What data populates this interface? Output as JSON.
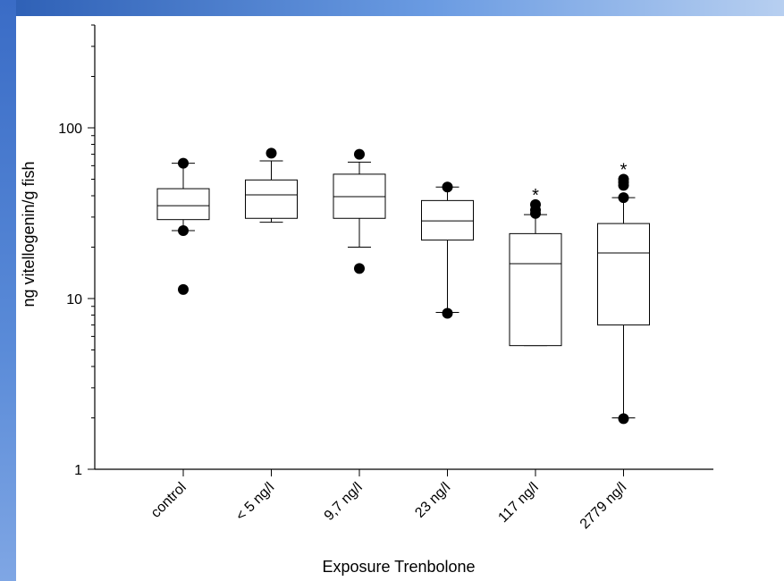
{
  "chart_data": {
    "type": "box",
    "title": "",
    "xlabel": "Exposure Trenbolone",
    "ylabel": "ng vitellogenin/g fish",
    "yscale": "log",
    "ylim": [
      1,
      400
    ],
    "yticks": [
      1,
      10,
      100
    ],
    "ytick_labels": [
      "1",
      "10",
      "100"
    ],
    "grid": false,
    "categories": [
      "control",
      "< 5 ng/l",
      "9,7 ng/l",
      "23 ng/l",
      "117 ng/l",
      "2779 ng/l"
    ],
    "boxes": [
      {
        "whisker_low": 25,
        "q1": 29,
        "median": 35,
        "q3": 44,
        "whisker_high": 62,
        "outliers": [
          62,
          25,
          11.3
        ],
        "significant": false
      },
      {
        "whisker_low": 28,
        "q1": 29.5,
        "median": 40.5,
        "q3": 49.5,
        "whisker_high": 64,
        "outliers": [
          71
        ],
        "significant": false
      },
      {
        "whisker_low": 20,
        "q1": 29.5,
        "median": 39.5,
        "q3": 53.5,
        "whisker_high": 63,
        "outliers": [
          70,
          15
        ],
        "significant": false
      },
      {
        "whisker_low": 8.3,
        "q1": 22,
        "median": 28.5,
        "q3": 37.5,
        "whisker_high": 45,
        "outliers": [
          45,
          8.2
        ],
        "significant": false
      },
      {
        "whisker_low": 5.3,
        "q1": 5.3,
        "median": 16,
        "q3": 24,
        "whisker_high": 31,
        "outliers": [
          31.5,
          33,
          35.5
        ],
        "significant": true
      },
      {
        "whisker_low": 2.0,
        "q1": 7,
        "median": 18.5,
        "q3": 27.5,
        "whisker_high": 39,
        "outliers": [
          39,
          46,
          48,
          50,
          1.98
        ],
        "significant": true
      }
    ],
    "significance_marker": "*"
  }
}
